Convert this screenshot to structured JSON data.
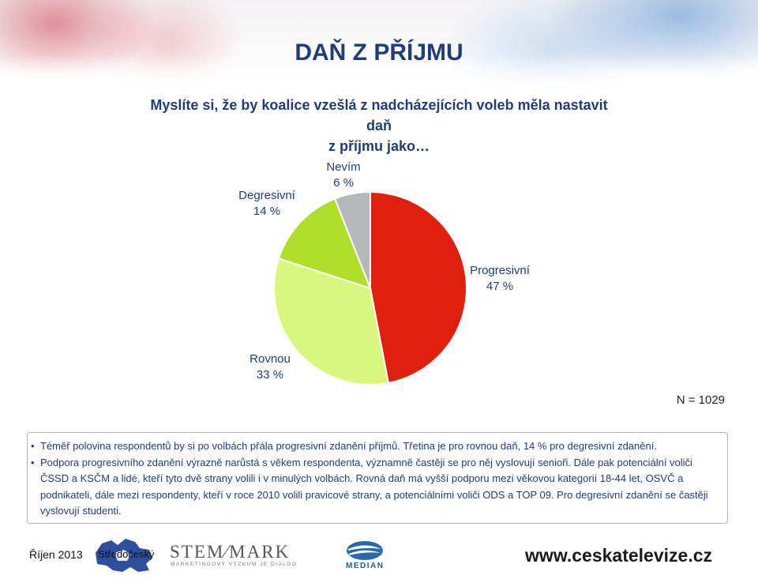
{
  "title": "DAŇ Z PŘÍJMU",
  "question_lines": [
    "Myslíte si, že by koalice vzešlá z nadcházejících voleb měla nastavit daň",
    "z příjmu jako…"
  ],
  "chart_data": {
    "type": "pie",
    "start_angle_deg": 0,
    "direction": "clockwise",
    "slices": [
      {
        "label": "Progresivní",
        "value": 47,
        "value_text": "47 %",
        "color": "#e0200e"
      },
      {
        "label": "Rovnou",
        "value": 33,
        "value_text": "33 %",
        "color": "#d9f77c"
      },
      {
        "label": "Degresivní",
        "value": 14,
        "value_text": "14 %",
        "color": "#aee02a"
      },
      {
        "label": "Nevím",
        "value": 6,
        "value_text": "6 %",
        "color": "#b4b8b8"
      }
    ]
  },
  "sample_size": "N = 1029",
  "notes": [
    "Téměř polovina respondentů by si po volbách přála progresivní zdanění příjmů. Třetina je pro rovnou daň, 14 % pro degresivní zdanění.",
    "Podpora progresivního zdanění výrazně narůstá s věkem respondenta, významně častěji se pro něj vyslovují senioři. Dále pak potenciální voliči ČSSD a KSČM a lidé, kteří tyto dvě strany volili i v minulých volbách. Rovná daň má vyšší podporu mezi věkovou kategorií 18-44 let, OSVČ a podnikateli, dále mezi respondenty, kteří v roce 2010 volili pravicové strany, a potenciálními voliči ODS a TOP 09. Pro degresivní zdanění se častěji vyslovují studenti."
  ],
  "footer": {
    "date": "Říjen 2013",
    "region": "Středočeský",
    "stem_brand": "STEM⁄MARK",
    "stem_tagline": "MARKETINGOVÝ VÝZKUM JE DIALOG",
    "median_brand": "MEDIAN",
    "website": "www.ceskatelevize.cz"
  },
  "colors": {
    "title": "#1f3d7a",
    "text": "#1f3d7a"
  }
}
